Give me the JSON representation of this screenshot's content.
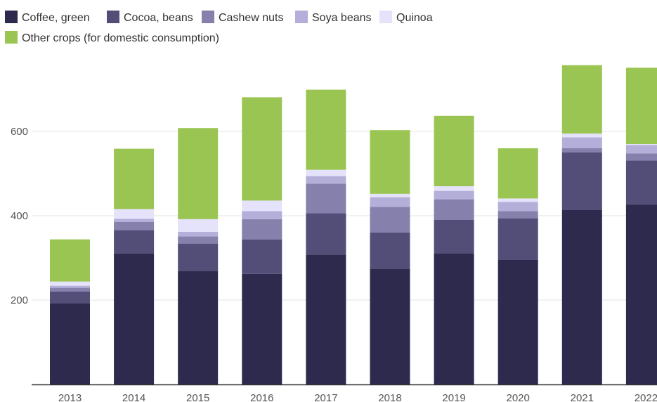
{
  "chart_data": {
    "type": "bar",
    "stacked": true,
    "title": "",
    "xlabel": "",
    "ylabel": "",
    "categories": [
      "2013",
      "2014",
      "2015",
      "2016",
      "2017",
      "2018",
      "2019",
      "2020",
      "2021",
      "2022"
    ],
    "ylim": [
      0,
      790
    ],
    "yticks": [
      200,
      400,
      600
    ],
    "grid": true,
    "legend_position": "top-left",
    "series": [
      {
        "name": "Coffee, green",
        "color": "#2d2a4e",
        "values": [
          193,
          310,
          269,
          262,
          308,
          274,
          311,
          295,
          414,
          427
        ]
      },
      {
        "name": "Cocoa, beans",
        "color": "#524e78",
        "values": [
          27,
          56,
          65,
          82,
          98,
          86,
          79,
          99,
          136,
          104
        ]
      },
      {
        "name": "Cashew nuts",
        "color": "#8581ac",
        "values": [
          9,
          19,
          17,
          48,
          70,
          61,
          49,
          17,
          10,
          17
        ]
      },
      {
        "name": "Soya beans",
        "color": "#b3afd9",
        "values": [
          5,
          8,
          11,
          19,
          18,
          23,
          20,
          22,
          26,
          20
        ]
      },
      {
        "name": "Quinoa",
        "color": "#e5e2fb",
        "values": [
          10,
          23,
          30,
          25,
          15,
          8,
          11,
          8,
          9,
          2
        ]
      },
      {
        "name": "Other crops (for domestic consumption)",
        "color": "#9bc552",
        "values": [
          100,
          143,
          216,
          245,
          190,
          151,
          167,
          119,
          162,
          181
        ]
      }
    ]
  }
}
